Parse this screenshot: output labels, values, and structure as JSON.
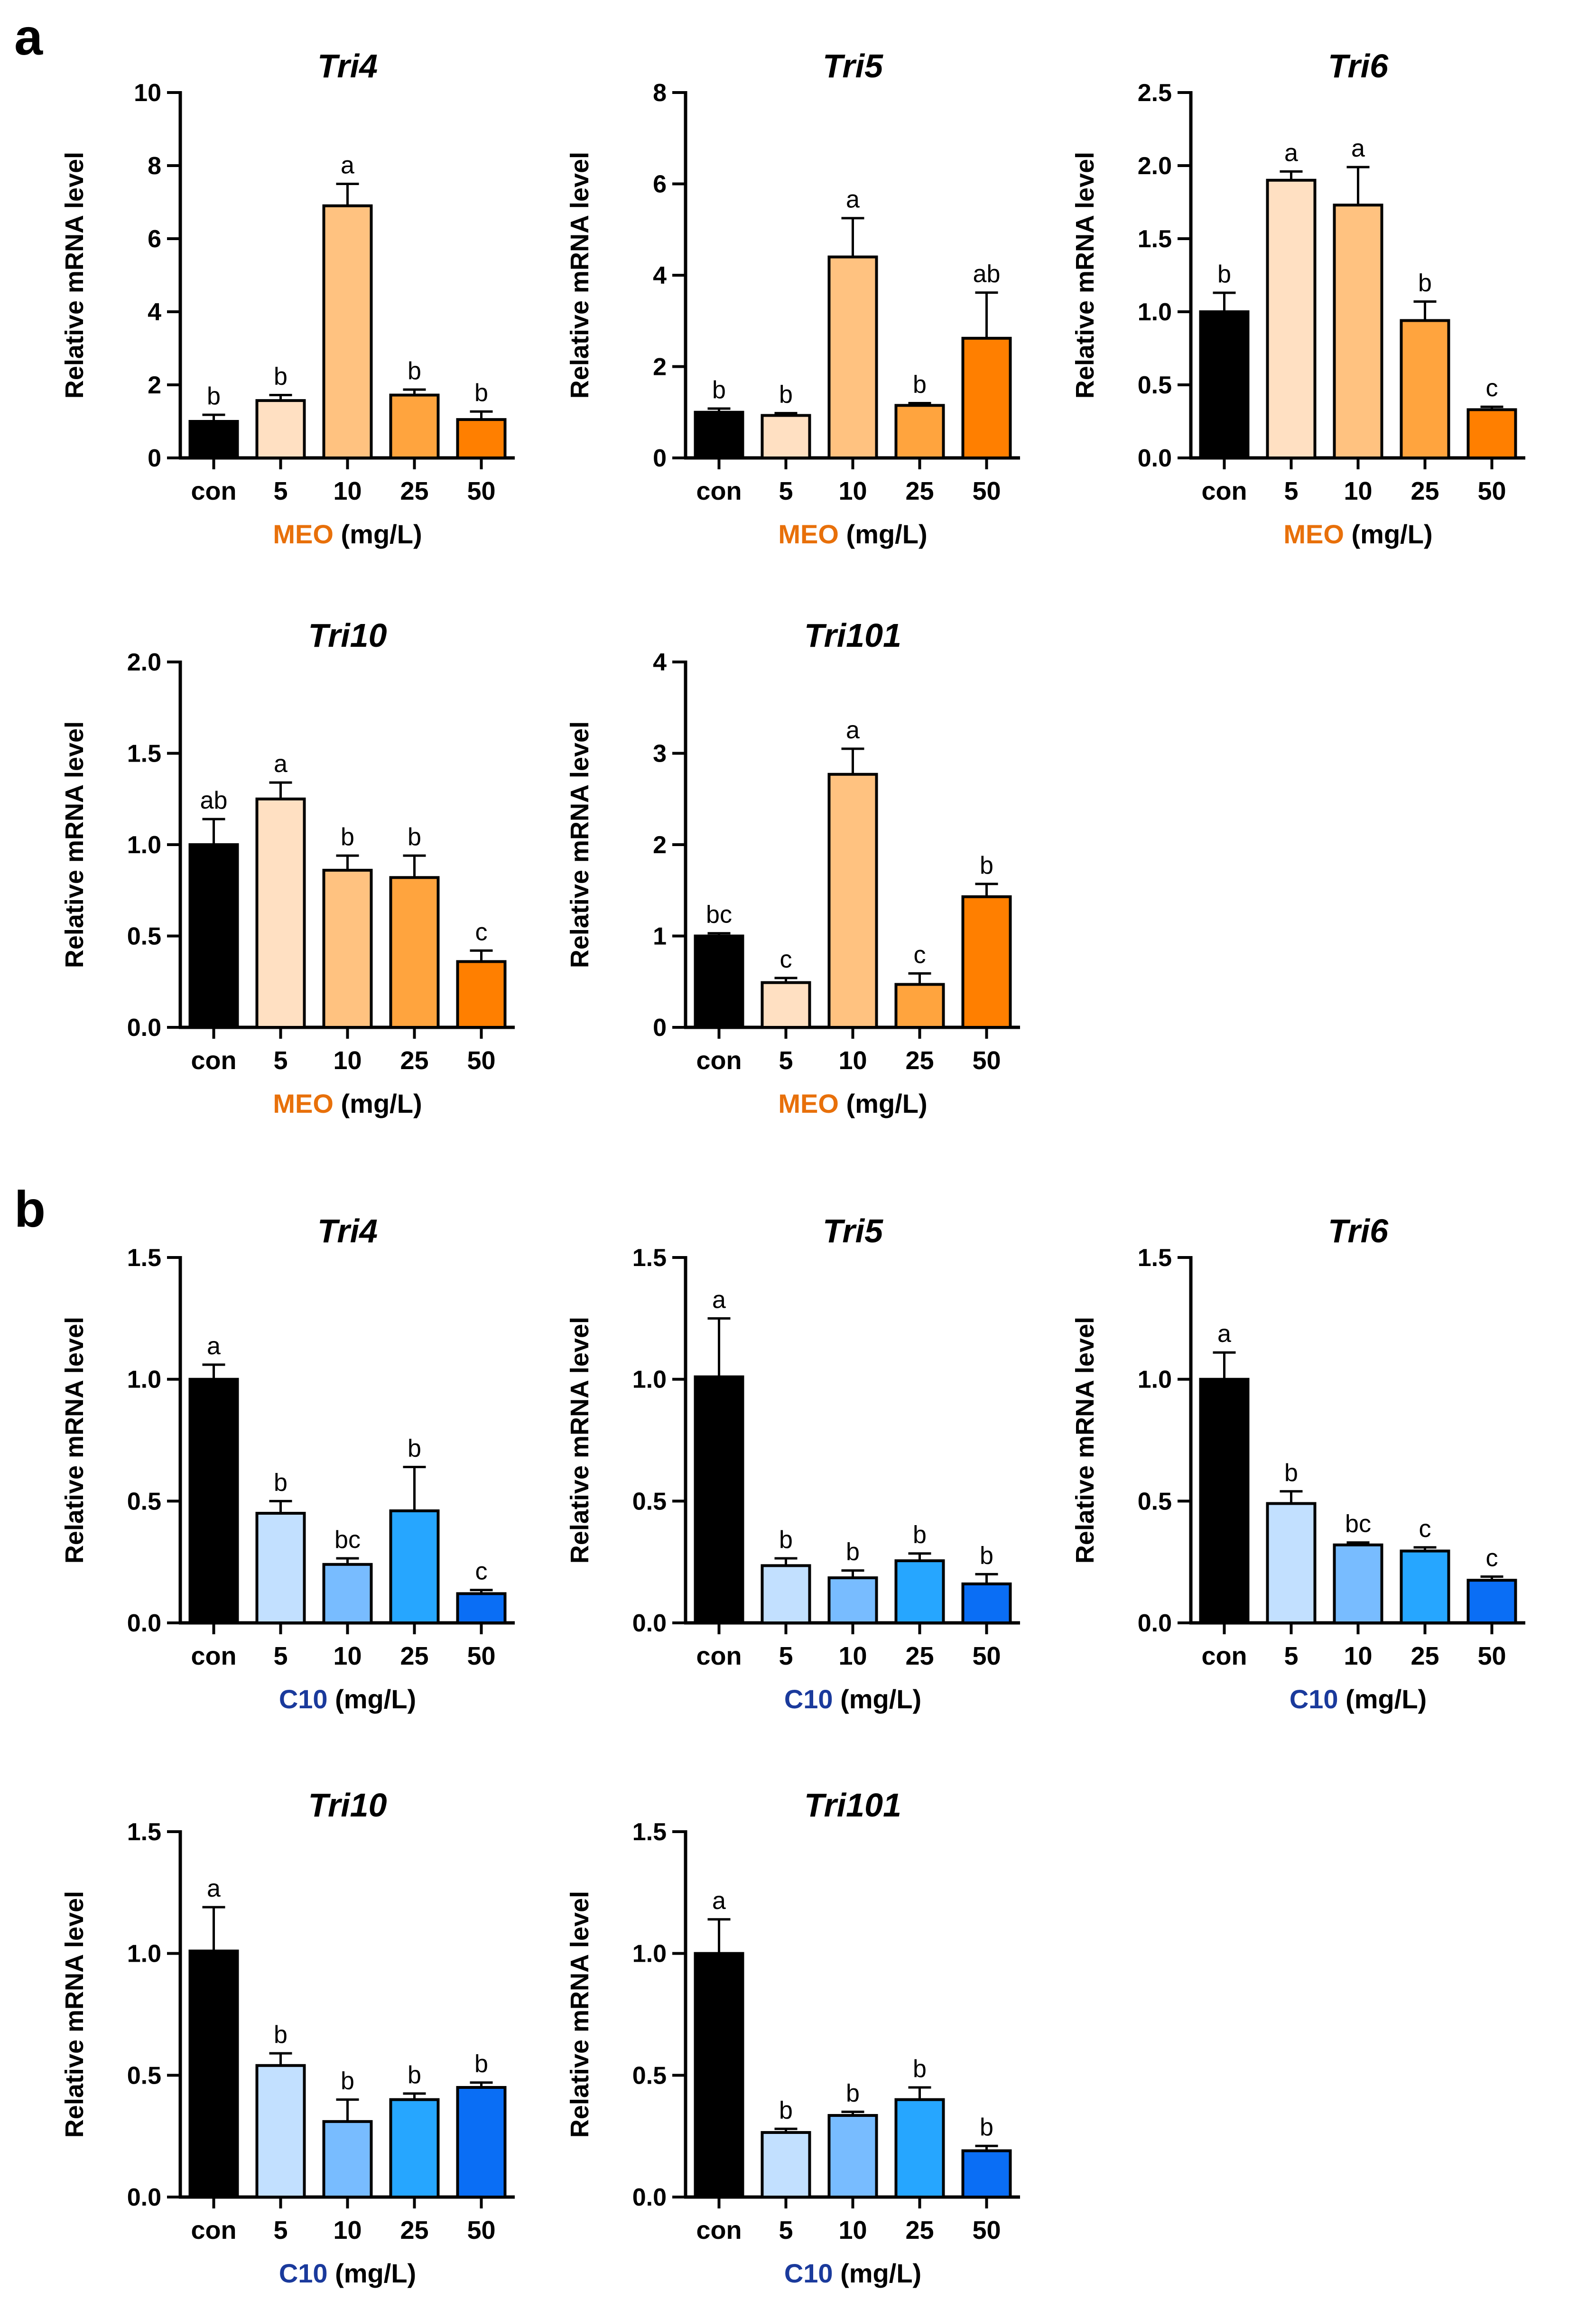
{
  "panels": [
    {
      "letter": "a"
    },
    {
      "letter": "b"
    }
  ],
  "colors": {
    "control": "#000000",
    "meo": [
      "#ffe0c2",
      "#ffc280",
      "#ffa43e",
      "#ff7f00"
    ],
    "c10": [
      "#c2e0ff",
      "#78bcff",
      "#26a6ff",
      "#0a6ef5"
    ],
    "meo_label": "#e8700a",
    "c10_label": "#1a3a9c"
  },
  "chart_data": [
    {
      "panel": "a",
      "type": "bar",
      "title": "Tri4",
      "categories": [
        "con",
        "5",
        "10",
        "25",
        "50"
      ],
      "values": [
        1.0,
        1.57,
        6.9,
        1.72,
        1.05
      ],
      "errors": [
        0.18,
        0.15,
        0.6,
        0.15,
        0.22
      ],
      "significance": [
        "b",
        "b",
        "a",
        "b",
        "b"
      ],
      "ylim": [
        0,
        10
      ],
      "yticks": [
        "0",
        "2",
        "4",
        "6",
        "8",
        "10"
      ],
      "ylabel": "Relative mRNA level",
      "xlabel_prefix": "MEO",
      "xlabel_suffix": " (mg/L)",
      "treatment": "meo"
    },
    {
      "panel": "a",
      "type": "bar",
      "title": "Tri5",
      "categories": [
        "con",
        "5",
        "10",
        "25",
        "50"
      ],
      "values": [
        1.0,
        0.93,
        4.4,
        1.15,
        2.62
      ],
      "errors": [
        0.08,
        0.05,
        0.85,
        0.05,
        1.0
      ],
      "significance": [
        "b",
        "b",
        "a",
        "b",
        "ab"
      ],
      "ylim": [
        0,
        8
      ],
      "yticks": [
        "0",
        "2",
        "4",
        "6",
        "8"
      ],
      "ylabel": "Relative mRNA level",
      "xlabel_prefix": "MEO",
      "xlabel_suffix": " (mg/L)",
      "treatment": "meo"
    },
    {
      "panel": "a",
      "type": "bar",
      "title": "Tri6",
      "categories": [
        "con",
        "5",
        "10",
        "25",
        "50"
      ],
      "values": [
        1.0,
        1.9,
        1.73,
        0.94,
        0.33
      ],
      "errors": [
        0.13,
        0.06,
        0.26,
        0.13,
        0.02
      ],
      "significance": [
        "b",
        "a",
        "a",
        "b",
        "c"
      ],
      "ylim": [
        0,
        2.5
      ],
      "yticks": [
        "0.0",
        "0.5",
        "1.0",
        "1.5",
        "2.0",
        "2.5"
      ],
      "ylabel": "Relative mRNA level",
      "xlabel_prefix": "MEO",
      "xlabel_suffix": " (mg/L)",
      "treatment": "meo"
    },
    {
      "panel": "a",
      "type": "bar",
      "title": "Tri10",
      "categories": [
        "con",
        "5",
        "10",
        "25",
        "50"
      ],
      "values": [
        1.0,
        1.25,
        0.86,
        0.82,
        0.36
      ],
      "errors": [
        0.14,
        0.09,
        0.08,
        0.12,
        0.06
      ],
      "significance": [
        "ab",
        "a",
        "b",
        "b",
        "c"
      ],
      "ylim": [
        0,
        2.0
      ],
      "yticks": [
        "0.0",
        "0.5",
        "1.0",
        "1.5",
        "2.0"
      ],
      "ylabel": "Relative mRNA level",
      "xlabel_prefix": "MEO",
      "xlabel_suffix": " (mg/L)",
      "treatment": "meo"
    },
    {
      "panel": "a",
      "type": "bar",
      "title": "Tri101",
      "categories": [
        "con",
        "5",
        "10",
        "25",
        "50"
      ],
      "values": [
        1.0,
        0.49,
        2.77,
        0.47,
        1.43
      ],
      "errors": [
        0.03,
        0.05,
        0.28,
        0.12,
        0.14
      ],
      "significance": [
        "bc",
        "c",
        "a",
        "c",
        "b"
      ],
      "ylim": [
        0,
        4
      ],
      "yticks": [
        "0",
        "1",
        "2",
        "3",
        "4"
      ],
      "ylabel": "Relative mRNA level",
      "xlabel_prefix": "MEO",
      "xlabel_suffix": " (mg/L)",
      "treatment": "meo"
    },
    {
      "panel": "b",
      "type": "bar",
      "title": "Tri4",
      "categories": [
        "con",
        "5",
        "10",
        "25",
        "50"
      ],
      "values": [
        1.0,
        0.45,
        0.24,
        0.46,
        0.12
      ],
      "errors": [
        0.06,
        0.05,
        0.025,
        0.18,
        0.015
      ],
      "significance": [
        "a",
        "b",
        "bc",
        "b",
        "c"
      ],
      "ylim": [
        0,
        1.5
      ],
      "yticks": [
        "0.0",
        "0.5",
        "1.0",
        "1.5"
      ],
      "ylabel": "Relative mRNA level",
      "xlabel_prefix": "C10",
      "xlabel_suffix": " (mg/L)",
      "treatment": "c10"
    },
    {
      "panel": "b",
      "type": "bar",
      "title": "Tri5",
      "categories": [
        "con",
        "5",
        "10",
        "25",
        "50"
      ],
      "values": [
        1.01,
        0.235,
        0.185,
        0.255,
        0.16
      ],
      "errors": [
        0.24,
        0.03,
        0.03,
        0.03,
        0.04
      ],
      "significance": [
        "a",
        "b",
        "b",
        "b",
        "b"
      ],
      "ylim": [
        0,
        1.5
      ],
      "yticks": [
        "0.0",
        "0.5",
        "1.0",
        "1.5"
      ],
      "ylabel": "Relative mRNA level",
      "xlabel_prefix": "C10",
      "xlabel_suffix": " (mg/L)",
      "treatment": "c10"
    },
    {
      "panel": "b",
      "type": "bar",
      "title": "Tri6",
      "categories": [
        "con",
        "5",
        "10",
        "25",
        "50"
      ],
      "values": [
        1.0,
        0.49,
        0.32,
        0.295,
        0.175
      ],
      "errors": [
        0.11,
        0.05,
        0.01,
        0.015,
        0.015
      ],
      "significance": [
        "a",
        "b",
        "bc",
        "c",
        "c"
      ],
      "ylim": [
        0,
        1.5
      ],
      "yticks": [
        "0.0",
        "0.5",
        "1.0",
        "1.5"
      ],
      "ylabel": "Relative mRNA level",
      "xlabel_prefix": "C10",
      "xlabel_suffix": " (mg/L)",
      "treatment": "c10"
    },
    {
      "panel": "b",
      "type": "bar",
      "title": "Tri10",
      "categories": [
        "con",
        "5",
        "10",
        "25",
        "50"
      ],
      "values": [
        1.01,
        0.54,
        0.31,
        0.4,
        0.45
      ],
      "errors": [
        0.18,
        0.05,
        0.09,
        0.025,
        0.02
      ],
      "significance": [
        "a",
        "b",
        "b",
        "b",
        "b"
      ],
      "ylim": [
        0,
        1.5
      ],
      "yticks": [
        "0.0",
        "0.5",
        "1.0",
        "1.5"
      ],
      "ylabel": "Relative mRNA level",
      "xlabel_prefix": "C10",
      "xlabel_suffix": " (mg/L)",
      "treatment": "c10"
    },
    {
      "panel": "b",
      "type": "bar",
      "title": "Tri101",
      "categories": [
        "con",
        "5",
        "10",
        "25",
        "50"
      ],
      "values": [
        1.0,
        0.265,
        0.335,
        0.4,
        0.19
      ],
      "errors": [
        0.14,
        0.015,
        0.015,
        0.05,
        0.02
      ],
      "significance": [
        "a",
        "b",
        "b",
        "b",
        "b"
      ],
      "ylim": [
        0,
        1.5
      ],
      "yticks": [
        "0.0",
        "0.5",
        "1.0",
        "1.5"
      ],
      "ylabel": "Relative mRNA level",
      "xlabel_prefix": "C10",
      "xlabel_suffix": " (mg/L)",
      "treatment": "c10"
    }
  ]
}
